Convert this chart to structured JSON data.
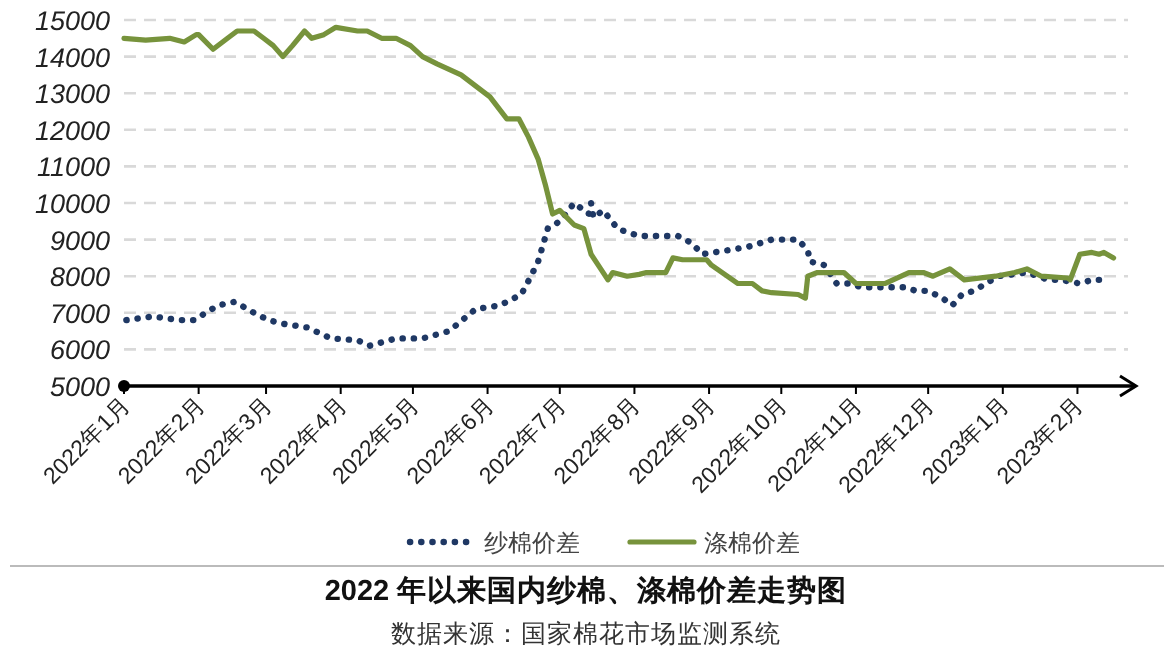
{
  "chart_data": {
    "type": "line",
    "title": "2022 年以来国内纱棉、涤棉价差走势图",
    "annotations": [
      "数据来源：国家棉花市场监测系统"
    ],
    "xlim": [
      "2022-01-01",
      "2023-02-22"
    ],
    "xticks": [
      {
        "value": "2022-01",
        "label": "2022年1月"
      },
      {
        "value": "2022-02",
        "label": "2022年2月"
      },
      {
        "value": "2022-03",
        "label": "2022年3月"
      },
      {
        "value": "2022-04",
        "label": "2022年4月"
      },
      {
        "value": "2022-05",
        "label": "2022年5月"
      },
      {
        "value": "2022-06",
        "label": "2022年6月"
      },
      {
        "value": "2022-07",
        "label": "2022年7月"
      },
      {
        "value": "2022-08",
        "label": "2022年8月"
      },
      {
        "value": "2022-09",
        "label": "2022年9月"
      },
      {
        "value": "2022-10",
        "label": "2022年10月"
      },
      {
        "value": "2022-11",
        "label": "2022年11月"
      },
      {
        "value": "2022-12",
        "label": "2022年12月"
      },
      {
        "value": "2023-01",
        "label": "2023年1月"
      },
      {
        "value": "2023-02",
        "label": "2023年2月"
      }
    ],
    "ylim": [
      5000,
      15000
    ],
    "yticks": [
      5000,
      6000,
      7000,
      8000,
      9000,
      10000,
      11000,
      12000,
      13000,
      14000,
      15000
    ],
    "grid": "y",
    "legend": "bottom",
    "marker": "none",
    "series": [
      {
        "name": "纱棉价差",
        "color": "#1f3864",
        "line_style": "dotted",
        "x": [
          "2022-01-02",
          "2022-01-13",
          "2022-01-24",
          "2022-01-30",
          "2022-02-09",
          "2022-02-16",
          "2022-02-24",
          "2022-03-02",
          "2022-03-08",
          "2022-03-18",
          "2022-03-28",
          "2022-04-08",
          "2022-04-13",
          "2022-04-24",
          "2022-05-05",
          "2022-05-16",
          "2022-05-27",
          "2022-06-06",
          "2022-06-15",
          "2022-06-19",
          "2022-06-22",
          "2022-06-26",
          "2022-07-01",
          "2022-07-07",
          "2022-07-13",
          "2022-07-14",
          "2022-07-15",
          "2022-07-19",
          "2022-07-25",
          "2022-07-29",
          "2022-08-03",
          "2022-08-11",
          "2022-08-19",
          "2022-08-25",
          "2022-08-29",
          "2022-09-08",
          "2022-09-17",
          "2022-09-27",
          "2022-10-08",
          "2022-10-12",
          "2022-10-13",
          "2022-10-19",
          "2022-10-24",
          "2022-10-30",
          "2022-11-03",
          "2022-11-09",
          "2022-11-21",
          "2022-11-26",
          "2022-12-01",
          "2022-12-07",
          "2022-12-11",
          "2022-12-15",
          "2022-12-20",
          "2022-12-30",
          "2023-01-11",
          "2023-01-20",
          "2023-01-25",
          "2023-02-02",
          "2023-02-07",
          "2023-02-14"
        ],
        "values": [
          6800,
          6900,
          6800,
          6800,
          7200,
          7300,
          7000,
          6800,
          6700,
          6600,
          6300,
          6250,
          6100,
          6300,
          6300,
          6500,
          7100,
          7200,
          7500,
          8000,
          8400,
          9300,
          9500,
          10000,
          9700,
          10000,
          9600,
          9800,
          9300,
          9200,
          9100,
          9100,
          9100,
          8900,
          8600,
          8700,
          8800,
          9000,
          9000,
          8700,
          8400,
          8300,
          7800,
          7800,
          7700,
          7700,
          7700,
          7600,
          7600,
          7400,
          7200,
          7500,
          7600,
          8000,
          8100,
          7900,
          7900,
          7800,
          7900,
          7900
        ]
      },
      {
        "name": "涤棉价差",
        "color": "#77933c",
        "line_style": "solid",
        "x": [
          "2022-01-01",
          "2022-01-10",
          "2022-01-20",
          "2022-01-26",
          "2022-01-31",
          "2022-02-01",
          "2022-02-07",
          "2022-02-13",
          "2022-02-17",
          "2022-02-24",
          "2022-02-28",
          "2022-03-04",
          "2022-03-08",
          "2022-03-12",
          "2022-03-17",
          "2022-03-20",
          "2022-03-25",
          "2022-03-30",
          "2022-04-08",
          "2022-04-12",
          "2022-04-18",
          "2022-04-24",
          "2022-04-30",
          "2022-05-05",
          "2022-05-11",
          "2022-05-21",
          "2022-05-27",
          "2022-06-02",
          "2022-06-09",
          "2022-06-14",
          "2022-06-18",
          "2022-06-22",
          "2022-06-25",
          "2022-06-28",
          "2022-07-01",
          "2022-07-07",
          "2022-07-11",
          "2022-07-14",
          "2022-07-18",
          "2022-07-21",
          "2022-07-23",
          "2022-07-29",
          "2022-08-03",
          "2022-08-06",
          "2022-08-14",
          "2022-08-17",
          "2022-08-21",
          "2022-08-31",
          "2022-09-02",
          "2022-09-13",
          "2022-09-19",
          "2022-09-23",
          "2022-09-27",
          "2022-10-08",
          "2022-10-11",
          "2022-10-12",
          "2022-10-16",
          "2022-10-27",
          "2022-11-01",
          "2022-11-13",
          "2022-11-23",
          "2022-11-29",
          "2022-12-03",
          "2022-12-10",
          "2022-12-16",
          "2022-12-29",
          "2023-01-06",
          "2023-01-11",
          "2023-01-17",
          "2023-01-28",
          "2023-01-29",
          "2023-02-02",
          "2023-02-07",
          "2023-02-10",
          "2023-02-12",
          "2023-02-16"
        ],
        "values": [
          14500,
          14450,
          14500,
          14400,
          14600,
          14600,
          14200,
          14500,
          14700,
          14700,
          14500,
          14300,
          14000,
          14300,
          14700,
          14500,
          14600,
          14800,
          14700,
          14700,
          14500,
          14500,
          14300,
          14000,
          13800,
          13500,
          13200,
          12900,
          12300,
          12300,
          11800,
          11200,
          10500,
          9700,
          9800,
          9400,
          9300,
          8600,
          8200,
          7900,
          8100,
          8000,
          8050,
          8100,
          8100,
          8500,
          8450,
          8450,
          8300,
          7800,
          7800,
          7600,
          7550,
          7500,
          7400,
          8000,
          8100,
          8100,
          7800,
          7800,
          8100,
          8100,
          8000,
          8200,
          7900,
          8000,
          8100,
          8200,
          8000,
          7950,
          7900,
          8600,
          8650,
          8600,
          8650,
          8500
        ]
      }
    ]
  }
}
